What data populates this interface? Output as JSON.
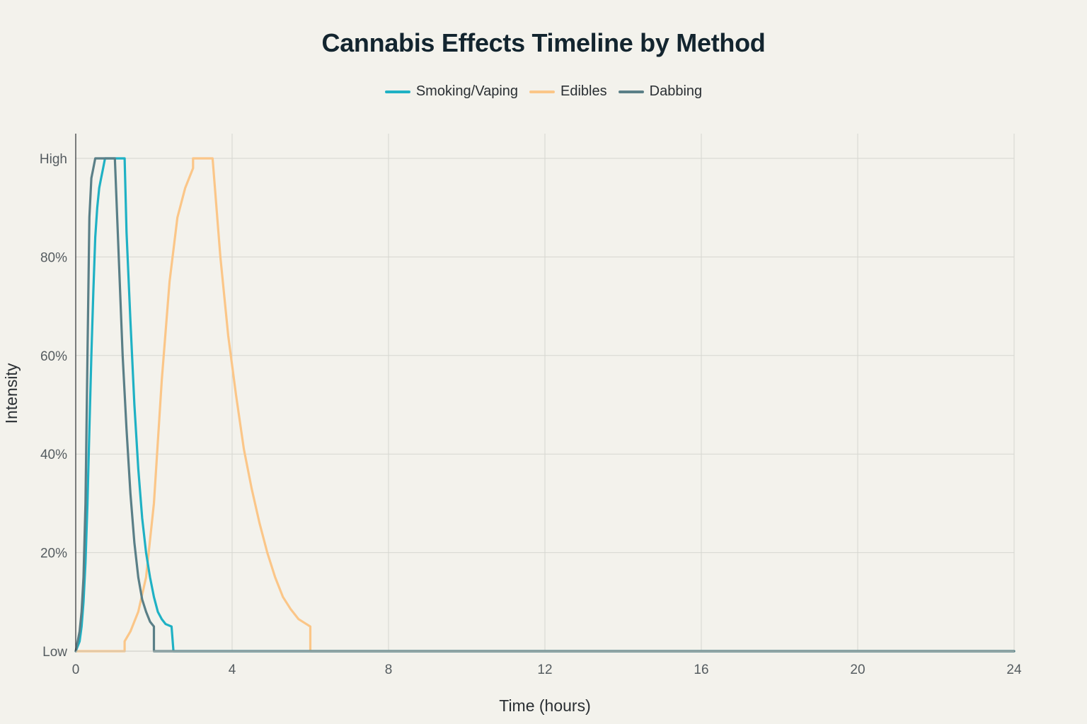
{
  "chart_data": {
    "type": "line",
    "title": "Cannabis Effects Timeline by Method",
    "xlabel": "Time (hours)",
    "ylabel": "Intensity",
    "xlim": [
      0,
      24
    ],
    "ylim": [
      0,
      100
    ],
    "x_ticks": [
      0,
      4,
      8,
      12,
      16,
      20,
      24
    ],
    "x_tick_labels": [
      "0",
      "4",
      "8",
      "12",
      "16",
      "20",
      "24"
    ],
    "y_ticks": [
      0,
      20,
      40,
      60,
      80,
      100
    ],
    "y_tick_labels": [
      "Low",
      "20%",
      "40%",
      "60%",
      "80%",
      "High"
    ],
    "grid": true,
    "legend_position": "top-center",
    "series": [
      {
        "name": "Smoking/Vaping",
        "color": "#1fb1c4",
        "x": [
          0,
          0.1,
          0.15,
          0.2,
          0.25,
          0.3,
          0.35,
          0.4,
          0.45,
          0.5,
          0.55,
          0.6,
          0.65,
          0.7,
          0.75,
          1.25,
          1.3,
          1.4,
          1.5,
          1.6,
          1.7,
          1.8,
          1.9,
          2.0,
          2.1,
          2.2,
          2.3,
          2.45,
          2.5,
          2.5,
          24
        ],
        "y": [
          0,
          2,
          5,
          10,
          18,
          30,
          45,
          60,
          73,
          84,
          90,
          94,
          96,
          98,
          100,
          100,
          85,
          67,
          50,
          37,
          27,
          20,
          15,
          11,
          8,
          6.5,
          5.5,
          5,
          0,
          0,
          0
        ]
      },
      {
        "name": "Edibles",
        "color": "#fbc688",
        "x": [
          0,
          1.25,
          1.25,
          1.4,
          1.6,
          1.8,
          2.0,
          2.2,
          2.4,
          2.6,
          2.8,
          3.0,
          3.0,
          3.5,
          3.7,
          3.9,
          4.1,
          4.3,
          4.5,
          4.7,
          4.9,
          5.1,
          5.3,
          5.5,
          5.7,
          5.9,
          6.0,
          6.0,
          24
        ],
        "y": [
          0,
          0,
          2,
          4,
          8,
          15,
          30,
          55,
          75,
          88,
          94,
          98,
          100,
          100,
          80,
          64,
          52,
          41,
          33,
          26,
          20,
          15,
          11,
          8.5,
          6.5,
          5.5,
          5,
          0,
          0
        ]
      },
      {
        "name": "Dabbing",
        "color": "#5a7f87",
        "x": [
          0,
          0.05,
          0.1,
          0.15,
          0.2,
          0.25,
          0.3,
          0.35,
          0.4,
          0.45,
          0.5,
          1.0,
          1.1,
          1.2,
          1.3,
          1.4,
          1.5,
          1.6,
          1.7,
          1.8,
          1.9,
          2.0,
          2.0,
          24
        ],
        "y": [
          0,
          2,
          4,
          8,
          15,
          30,
          60,
          88,
          96,
          98,
          100,
          100,
          80,
          60,
          45,
          32,
          22,
          15,
          10.5,
          8,
          6,
          5,
          0,
          0
        ]
      }
    ]
  }
}
